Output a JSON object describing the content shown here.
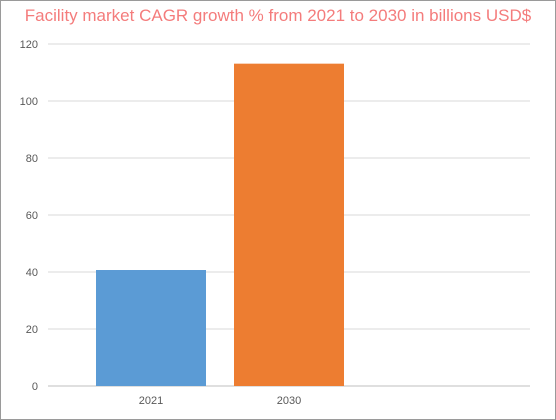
{
  "chart_data": {
    "type": "bar",
    "title": "Facility market CAGR growth % from 2021 to 2030 in billions USD$",
    "categories": [
      "2021",
      "2030"
    ],
    "values": [
      40.7,
      113.1
    ],
    "colors": [
      "#5b9bd5",
      "#ed7d31"
    ],
    "ylim": [
      0,
      120
    ],
    "yticks": [
      0,
      20,
      40,
      60,
      80,
      100,
      120
    ],
    "grid": true,
    "legend": "none",
    "title_color": "#f47c7c",
    "grid_color": "#d9d9d9"
  }
}
